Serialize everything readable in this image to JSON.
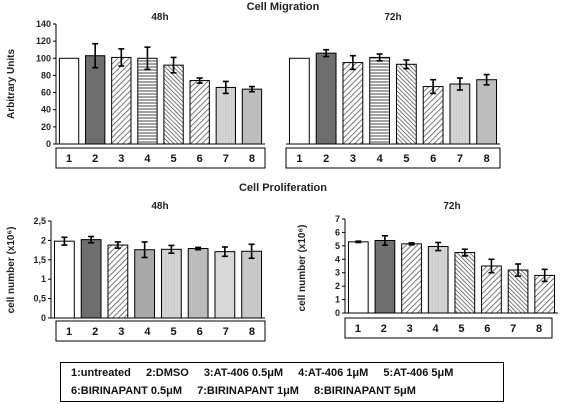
{
  "figure": {
    "migration_title": "Cell Migration",
    "proliferation_title": "Cell Proliferation"
  },
  "legend": {
    "items": [
      "1:untreated",
      "2:DMSO",
      "3:AT-406 0.5μM",
      "4:AT-406 1μM",
      "5:AT-406 5μM",
      "6:BIRINAPANT 0.5μM",
      "7:BIRINAPANT 1μM",
      "8:BIRINAPANT 5μM"
    ]
  },
  "chart_data": [
    {
      "id": "migration_48h",
      "type": "bar",
      "title": "48h",
      "ylabel": "Arbitrary Units",
      "categories": [
        "1",
        "2",
        "3",
        "4",
        "5",
        "6",
        "7",
        "8"
      ],
      "values": [
        100,
        103,
        101,
        100,
        92,
        74,
        66,
        64
      ],
      "errors": [
        0,
        14,
        10,
        13,
        9,
        3,
        7,
        3
      ],
      "ylim": [
        0,
        140
      ],
      "yticks": [
        0,
        20,
        40,
        60,
        80,
        100,
        120,
        140
      ],
      "ytick_labels": [
        "0",
        "20",
        "40",
        "60",
        "80",
        "100",
        "120",
        "140"
      ],
      "show_y_axis": true
    },
    {
      "id": "migration_72h",
      "type": "bar",
      "title": "72h",
      "ylabel": "",
      "categories": [
        "1",
        "2",
        "3",
        "4",
        "5",
        "6",
        "7",
        "8"
      ],
      "values": [
        100,
        106,
        95,
        101,
        93,
        67,
        70,
        75
      ],
      "errors": [
        0,
        4,
        8,
        4,
        5,
        8,
        7,
        6
      ],
      "ylim": [
        0,
        140
      ],
      "yticks": [],
      "ytick_labels": [],
      "show_y_axis": false
    },
    {
      "id": "proliferation_48h",
      "type": "bar",
      "title": "48h",
      "ylabel": "cell number (x10⁶)",
      "categories": [
        "1",
        "2",
        "3",
        "4",
        "5",
        "6",
        "7",
        "8"
      ],
      "values": [
        1.98,
        2.02,
        1.88,
        1.76,
        1.77,
        1.79,
        1.71,
        1.72
      ],
      "errors": [
        0.1,
        0.08,
        0.08,
        0.2,
        0.1,
        0.03,
        0.12,
        0.18
      ],
      "ylim": [
        0,
        2.5
      ],
      "yticks": [
        0,
        0.5,
        1,
        1.5,
        2,
        2.5
      ],
      "ytick_labels": [
        "0",
        "0,5",
        "1",
        "1,5",
        "2",
        "2,5"
      ],
      "show_y_axis": true
    },
    {
      "id": "proliferation_72h",
      "type": "bar",
      "title": "72h",
      "ylabel": "cell number (x10⁶)",
      "categories": [
        "1",
        "2",
        "3",
        "4",
        "5",
        "6",
        "7",
        "8"
      ],
      "values": [
        5.3,
        5.4,
        5.15,
        4.95,
        4.5,
        3.5,
        3.2,
        2.8
      ],
      "errors": [
        0.05,
        0.35,
        0.07,
        0.3,
        0.25,
        0.5,
        0.45,
        0.45
      ],
      "ylim": [
        0,
        7
      ],
      "yticks": [
        0,
        1,
        2,
        3,
        4,
        5,
        6,
        7
      ],
      "ytick_labels": [
        "0",
        "1",
        "2",
        "3",
        "4",
        "5",
        "6",
        "7"
      ],
      "show_y_axis": true
    }
  ]
}
